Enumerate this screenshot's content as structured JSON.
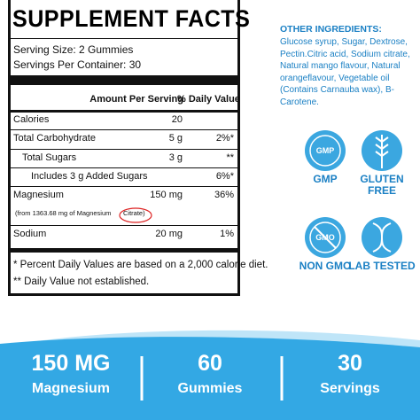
{
  "facts": {
    "title": "SUPPLEMENT FACTS",
    "serving_size": "Serving Size: 2 Gummies",
    "servings_per_container": "Servings Per Container: 30",
    "header": {
      "amount": "Amount Per Serving",
      "dv": "% Daily Value"
    },
    "rows": [
      {
        "name": "Calories",
        "amount": "20"
      },
      {
        "name": "Total Carbohydrate",
        "amount": "5 g",
        "dv": "2%*"
      },
      {
        "name": "Total Sugars",
        "amount": "3 g",
        "dv": "**"
      },
      {
        "name": "Includes 3 g Added Sugars",
        "dv": "6%*"
      },
      {
        "name": "Magnesium",
        "amount": "150 mg",
        "dv": "36%",
        "note": "(from 1363.68 mg of Magnesium",
        "note_circled": "Citrate)"
      },
      {
        "name": "Sodium",
        "amount": "20 mg",
        "dv": "1%"
      }
    ],
    "footnotes": [
      "* Percent Daily Values are based on a 2,000 calorie diet.",
      "** Daily Value not established."
    ]
  },
  "other_ingredients": {
    "title": "OTHER INGREDIENTS:",
    "text": "Glucose syrup, Sugar, Dextrose, Pectin.Citric acid, Sodium citrate, Natural mango flavour, Natural orangeflavour, Vegetable oil (Contains Carnauba wax), B-Carotene."
  },
  "badges": [
    {
      "icon": "GMP",
      "label": "GMP"
    },
    {
      "label": "GLUTEN FREE"
    },
    {
      "icon": "GMO",
      "label": "NON GMO"
    },
    {
      "label": "LAB TESTED"
    }
  ],
  "stats": [
    {
      "value": "150 MG",
      "label": "Magnesium"
    },
    {
      "value": "60",
      "label": "Gummies"
    },
    {
      "value": "30",
      "label": "Servings"
    }
  ]
}
